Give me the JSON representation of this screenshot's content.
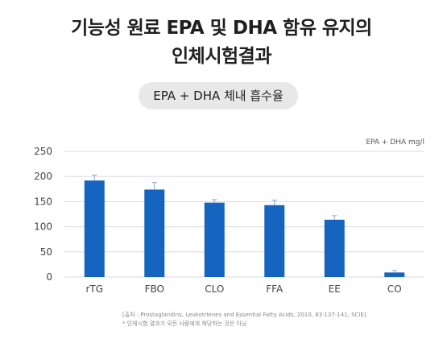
{
  "title": {
    "line1": "기능성 원료 EPA 및 DHA 함유 유지의",
    "line2": "인체시험결과"
  },
  "badge": "EPA + DHA 체내 흡수율",
  "chart_data": {
    "type": "bar",
    "unit_label": "EPA + DHA mg/l",
    "categories": [
      "rTG",
      "FBO",
      "CLO",
      "FFA",
      "EE",
      "CO"
    ],
    "values": [
      192,
      174,
      148,
      143,
      114,
      9
    ],
    "errors": [
      11,
      14,
      6,
      10,
      8,
      4
    ],
    "yticks": [
      0,
      50,
      100,
      150,
      200,
      250
    ],
    "ylim": [
      0,
      250
    ],
    "grid": true,
    "bar_color": "#1565c0",
    "error_color": "#8aa6c8"
  },
  "source": {
    "line1": "[출처 : Prostaglandins, Leukotrienes and Essential Fatty Acids, 2010, 83:137-141, SCIE]",
    "line2": "* 인체시험 결과가 모든 사람에게 해당하는 것은 아님"
  }
}
